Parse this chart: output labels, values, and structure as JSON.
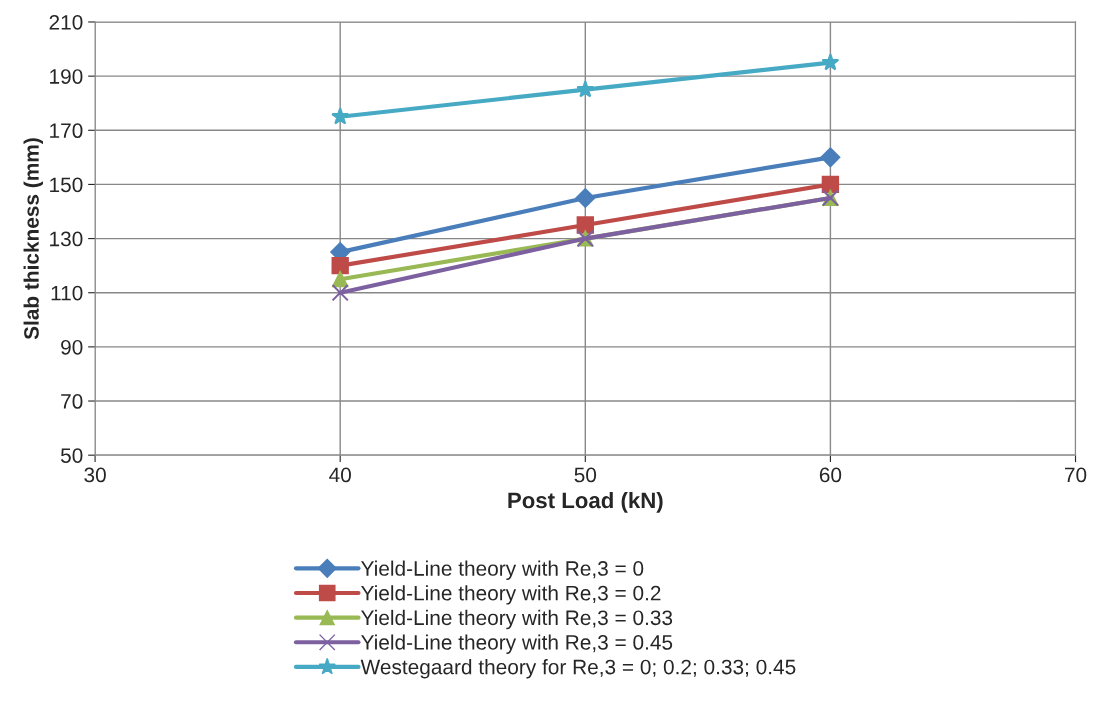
{
  "chart_data": {
    "type": "line",
    "xlabel": "Post Load (kN)",
    "ylabel": "Slab thickness (mm)",
    "x": [
      40,
      50,
      60
    ],
    "series": [
      {
        "name": "Yield-Line theory with Re,3 = 0",
        "color": "#4a7ebb",
        "marker": "diamond",
        "values": [
          125,
          145,
          160
        ]
      },
      {
        "name": "Yield-Line theory with Re,3 = 0.2",
        "color": "#be4b48",
        "marker": "square",
        "values": [
          120,
          135,
          150
        ]
      },
      {
        "name": "Yield-Line theory with Re,3 = 0.33",
        "color": "#98b954",
        "marker": "triangle",
        "values": [
          115,
          130,
          145
        ]
      },
      {
        "name": "Yield-Line theory with Re,3 = 0.45",
        "color": "#7d60a0",
        "marker": "cross",
        "values": [
          110,
          130,
          145
        ]
      },
      {
        "name": "Westegaard theory for Re,3 = 0; 0.2; 0.33; 0.45",
        "color": "#46aac5",
        "marker": "star",
        "values": [
          175,
          185,
          195
        ]
      }
    ],
    "xlim": [
      30,
      70
    ],
    "xticks": [
      30,
      40,
      50,
      60,
      70
    ],
    "ylim": [
      50,
      210
    ],
    "yticks": [
      50,
      70,
      90,
      110,
      130,
      150,
      170,
      190,
      210
    ],
    "grid": true,
    "legend": "bottom",
    "line_style": "solid"
  }
}
